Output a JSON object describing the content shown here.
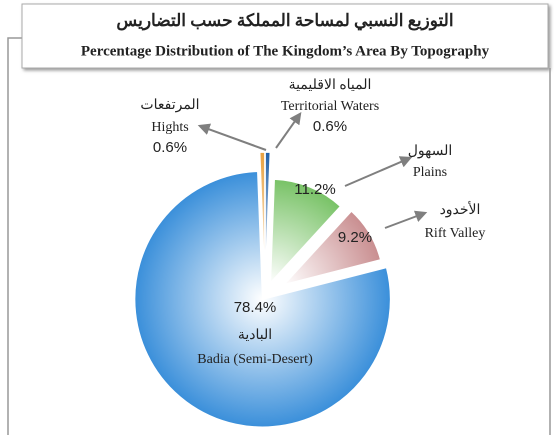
{
  "chart_data": {
    "type": "pie",
    "title": "التوزيع النسبي لمساحة المملكة حسب التضاريس",
    "subtitle": "Percentage Distribution of The Kingdom’s Area By Topography",
    "categories": [
      "Territorial Waters",
      "Plains",
      "Rift Valley",
      "Badia (Semi-Desert)",
      "Hights"
    ],
    "arabic_labels": [
      "المياه الاقليمية",
      "السهول",
      "الأخدود",
      "البادية",
      "المرتفعات"
    ],
    "values": [
      0.6,
      11.2,
      9.2,
      78.4,
      0.6
    ],
    "value_labels": [
      "0.6%",
      "11.2%",
      "9.2%",
      "78.4%",
      "0.6%"
    ],
    "colors": [
      "#1f5fa8",
      "#78c266",
      "#c98e90",
      "#3a8fda",
      "#e8a03e"
    ]
  }
}
